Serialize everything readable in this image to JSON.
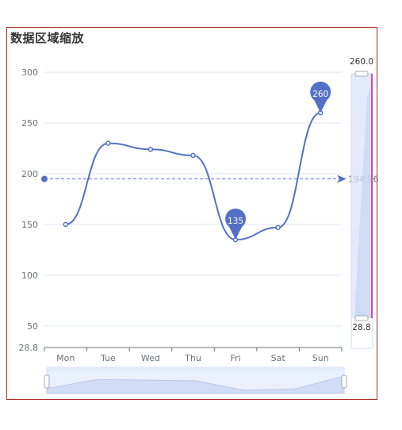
{
  "chart_title": "数据区域缩放",
  "chart_data": {
    "type": "line",
    "smooth": true,
    "categories": [
      "Mon",
      "Tue",
      "Wed",
      "Thu",
      "Fri",
      "Sat",
      "Sun"
    ],
    "values": [
      150,
      230,
      224,
      218,
      135,
      147,
      260
    ],
    "y_ticks": [
      300,
      250,
      200,
      150,
      100,
      50
    ],
    "ylim": [
      28.8,
      300
    ],
    "ymin_label": "28.8",
    "grid": true,
    "mark_points": [
      {
        "category": "Fri",
        "value": 135,
        "label": "135"
      },
      {
        "category": "Sun",
        "value": 260,
        "label": "260"
      }
    ],
    "mark_line": {
      "type": "average",
      "value": 194.86,
      "label": "194.86"
    },
    "y_zoom": {
      "start_label": "260.0",
      "end_label": "28.8"
    },
    "x_zoom": {
      "range": "full"
    },
    "colors": {
      "series": "#5470c6",
      "grid": "#e0e6f1",
      "axis": "#6e7079",
      "zoom_fill": "#d6e1fa",
      "zoom_border": "#d2dbee",
      "accent": "#b22a2a"
    }
  }
}
